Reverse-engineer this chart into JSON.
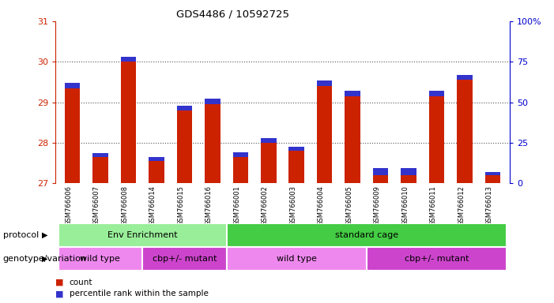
{
  "title": "GDS4486 / 10592725",
  "samples": [
    "GSM766006",
    "GSM766007",
    "GSM766008",
    "GSM766014",
    "GSM766015",
    "GSM766016",
    "GSM766001",
    "GSM766002",
    "GSM766003",
    "GSM766004",
    "GSM766005",
    "GSM766009",
    "GSM766010",
    "GSM766011",
    "GSM766012",
    "GSM766013"
  ],
  "red_tops": [
    29.35,
    27.65,
    30.0,
    27.55,
    28.8,
    28.95,
    27.65,
    28.0,
    27.8,
    29.4,
    29.15,
    27.2,
    27.2,
    29.15,
    29.55,
    27.2
  ],
  "blue_heights": [
    0.12,
    0.1,
    0.13,
    0.1,
    0.11,
    0.14,
    0.11,
    0.12,
    0.11,
    0.13,
    0.13,
    0.18,
    0.17,
    0.13,
    0.13,
    0.08
  ],
  "ylim_left": [
    27,
    31
  ],
  "ylim_right": [
    0,
    100
  ],
  "yticks_left": [
    27,
    28,
    29,
    30,
    31
  ],
  "yticks_right": [
    0,
    25,
    50,
    75,
    100
  ],
  "ytick_labels_right": [
    "0",
    "25",
    "50",
    "75",
    "100%"
  ],
  "bar_width": 0.55,
  "bar_color_red": "#cc2200",
  "bar_color_blue": "#3333cc",
  "baseline": 27,
  "protocol_groups": [
    {
      "label": "Env Enrichment",
      "start": 0,
      "end": 5,
      "color": "#99ee99"
    },
    {
      "label": "standard cage",
      "start": 6,
      "end": 15,
      "color": "#44cc44"
    }
  ],
  "genotype_groups": [
    {
      "label": "wild type",
      "start": 0,
      "end": 2,
      "color": "#ee88ee"
    },
    {
      "label": "cbp+/- mutant",
      "start": 3,
      "end": 5,
      "color": "#cc44cc"
    },
    {
      "label": "wild type",
      "start": 6,
      "end": 10,
      "color": "#ee88ee"
    },
    {
      "label": "cbp+/- mutant",
      "start": 11,
      "end": 15,
      "color": "#cc44cc"
    }
  ],
  "legend_count_color": "#cc2200",
  "legend_pct_color": "#3333cc",
  "protocol_label": "protocol",
  "genotype_label": "genotype/variation",
  "legend_count": "count",
  "legend_pct": "percentile rank within the sample",
  "left_axis_color": "#cc2200",
  "right_axis_color": "#0000cc",
  "xtick_bg_color": "#c8c8c8",
  "grid_color": "#555555"
}
